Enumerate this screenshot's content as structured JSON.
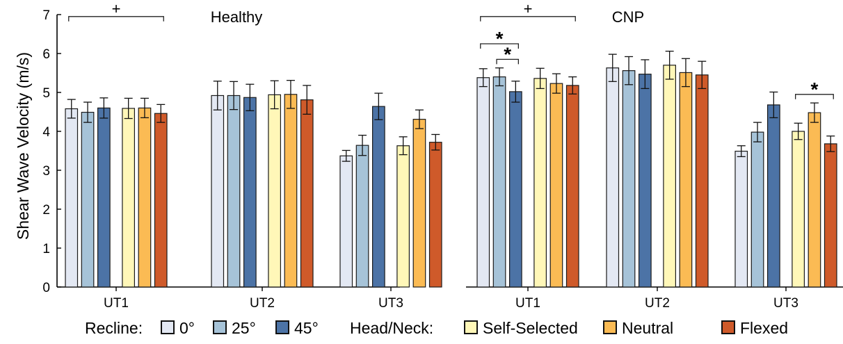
{
  "colors": {
    "recline_0": "#e3e8f3",
    "recline_25": "#a6c3d8",
    "recline_45": "#4c73a6",
    "self_selected": "#fff7b8",
    "neutral": "#fbbb54",
    "flexed": "#cf5a2a"
  },
  "chart_data": {
    "type": "bar",
    "ylabel": "Shear Wave Velocity (m/s)",
    "ylim": [
      0,
      7
    ],
    "yticks": [
      "0",
      "1",
      "2",
      "3",
      "4",
      "5",
      "6",
      "7"
    ],
    "grid": false,
    "panels": [
      {
        "title": "Healthy",
        "groups": [
          {
            "label": "UT1",
            "values": [
              4.58,
              4.49,
              4.6,
              4.59,
              4.6,
              4.46
            ],
            "errors": [
              0.24,
              0.26,
              0.26,
              0.26,
              0.25,
              0.23
            ]
          },
          {
            "label": "UT2",
            "values": [
              4.92,
              4.92,
              4.87,
              4.94,
              4.95,
              4.81
            ],
            "errors": [
              0.37,
              0.36,
              0.34,
              0.36,
              0.36,
              0.37
            ]
          },
          {
            "label": "UT3",
            "values": [
              3.37,
              3.64,
              4.64,
              3.63,
              4.31,
              3.72
            ],
            "errors": [
              0.14,
              0.26,
              0.34,
              0.23,
              0.24,
              0.2
            ]
          }
        ]
      },
      {
        "title": "CNP",
        "groups": [
          {
            "label": "UT1",
            "values": [
              5.38,
              5.4,
              5.02,
              5.36,
              5.23,
              5.18
            ],
            "errors": [
              0.23,
              0.23,
              0.27,
              0.26,
              0.25,
              0.22
            ]
          },
          {
            "label": "UT2",
            "values": [
              5.63,
              5.56,
              5.47,
              5.7,
              5.51,
              5.45
            ],
            "errors": [
              0.35,
              0.36,
              0.37,
              0.36,
              0.36,
              0.35
            ]
          },
          {
            "label": "UT3",
            "values": [
              3.49,
              3.98,
              4.68,
              4.0,
              4.48,
              3.68
            ],
            "errors": [
              0.14,
              0.25,
              0.33,
              0.21,
              0.25,
              0.2
            ]
          }
        ]
      }
    ],
    "significance": [
      {
        "symbol": "+",
        "panel": 0,
        "from_group": 0,
        "from_bar": 0,
        "to_group": 0,
        "to_bar": 5,
        "y": 6.95
      },
      {
        "symbol": "+",
        "panel": 1,
        "from_group": 0,
        "from_bar": 0,
        "to_group": 0,
        "to_bar": 5,
        "y": 6.95
      },
      {
        "symbol": "*",
        "panel": 1,
        "from_group": 0,
        "from_bar": 0,
        "to_group": 0,
        "to_bar": 2,
        "y": 6.25
      },
      {
        "symbol": "*",
        "panel": 1,
        "from_group": 0,
        "from_bar": 1,
        "to_group": 0,
        "to_bar": 2,
        "y": 5.85
      },
      {
        "symbol": "*",
        "panel": 1,
        "from_group": 2,
        "from_bar": 3,
        "to_group": 2,
        "to_bar": 5,
        "y": 4.95
      }
    ],
    "legend": {
      "position": "bottom",
      "groups": [
        {
          "title": "Recline:",
          "items": [
            {
              "label": "0°",
              "color_key": "recline_0"
            },
            {
              "label": "25°",
              "color_key": "recline_25"
            },
            {
              "label": "45°",
              "color_key": "recline_45"
            }
          ]
        },
        {
          "title": "Head/Neck:",
          "items": [
            {
              "label": "Self-Selected",
              "color_key": "self_selected"
            },
            {
              "label": "Neutral",
              "color_key": "neutral"
            },
            {
              "label": "Flexed",
              "color_key": "flexed"
            }
          ]
        }
      ]
    }
  }
}
